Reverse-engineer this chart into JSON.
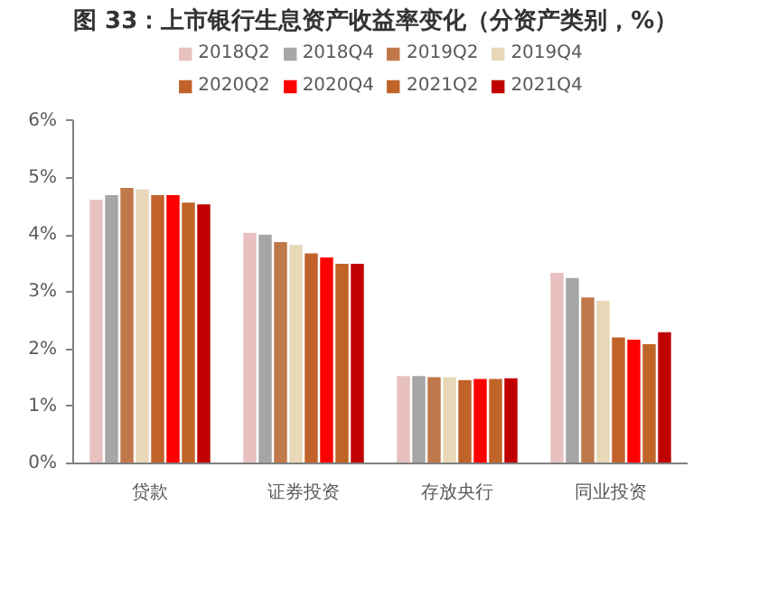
{
  "chart_data": {
    "type": "bar",
    "title": "图 33：上市银行生息资产收益率变化（分资产类别，%）",
    "categories": [
      "贷款",
      "证券投资",
      "存放央行",
      "同业投资"
    ],
    "series": [
      {
        "name": "2018Q2",
        "color": "#e8c0c0",
        "values": [
          4.62,
          4.04,
          1.53,
          3.34
        ]
      },
      {
        "name": "2018Q4",
        "color": "#a6a6a6",
        "values": [
          4.7,
          4.01,
          1.53,
          3.25
        ]
      },
      {
        "name": "2019Q2",
        "color": "#c0784a",
        "values": [
          4.83,
          3.88,
          1.51,
          2.91
        ]
      },
      {
        "name": "2019Q4",
        "color": "#e8d8b8",
        "values": [
          4.8,
          3.83,
          1.51,
          2.85
        ]
      },
      {
        "name": "2020Q2",
        "color": "#c0622a",
        "values": [
          4.7,
          3.68,
          1.46,
          2.21
        ]
      },
      {
        "name": "2020Q4",
        "color": "#ff0000",
        "values": [
          4.7,
          3.61,
          1.48,
          2.17
        ]
      },
      {
        "name": "2021Q2",
        "color": "#c06428",
        "values": [
          4.57,
          3.5,
          1.48,
          2.09
        ]
      },
      {
        "name": "2021Q4",
        "color": "#c00000",
        "values": [
          4.54,
          3.5,
          1.49,
          2.3
        ]
      }
    ],
    "ylim": [
      0,
      6
    ],
    "yticks": [
      {
        "value": 0,
        "label": "0%"
      },
      {
        "value": 1,
        "label": "1%"
      },
      {
        "value": 2,
        "label": "2%"
      },
      {
        "value": 3,
        "label": "3%"
      },
      {
        "value": 4,
        "label": "4%"
      },
      {
        "value": 5,
        "label": "5%"
      },
      {
        "value": 6,
        "label": "6%"
      }
    ],
    "grid": false,
    "legend": "top"
  }
}
